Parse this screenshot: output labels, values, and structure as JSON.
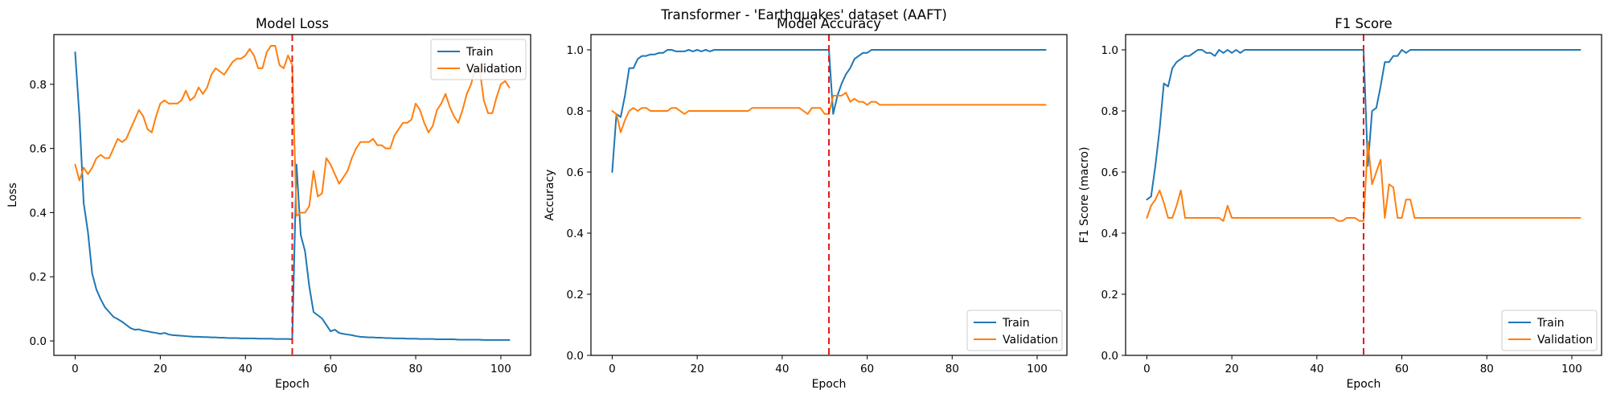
{
  "suptitle": "Transformer - 'Earthquakes' dataset (AAFT)",
  "colors": {
    "train": "#1f77b4",
    "validation": "#ff7f0e",
    "marker": "#e41a1c"
  },
  "chart_data": [
    {
      "type": "line",
      "title": "Model Loss",
      "xlabel": "Epoch",
      "ylabel": "Loss",
      "xlim": [
        -5,
        107
      ],
      "ylim": [
        -0.045,
        0.955
      ],
      "xticks": [
        0,
        20,
        40,
        60,
        80,
        100
      ],
      "yticks": [
        0.0,
        0.2,
        0.4,
        0.6,
        0.8
      ],
      "ytick_labels": [
        "0.0",
        "0.2",
        "0.4",
        "0.6",
        "0.8"
      ],
      "vline": 51,
      "legend": "top-right",
      "series": [
        {
          "name": "Train",
          "values": [
            0.9,
            0.7,
            0.43,
            0.34,
            0.21,
            0.16,
            0.13,
            0.105,
            0.09,
            0.075,
            0.068,
            0.06,
            0.05,
            0.04,
            0.035,
            0.036,
            0.032,
            0.03,
            0.027,
            0.025,
            0.022,
            0.025,
            0.02,
            0.018,
            0.017,
            0.016,
            0.015,
            0.014,
            0.013,
            0.013,
            0.012,
            0.012,
            0.011,
            0.011,
            0.01,
            0.01,
            0.009,
            0.009,
            0.009,
            0.008,
            0.008,
            0.008,
            0.008,
            0.007,
            0.007,
            0.007,
            0.007,
            0.006,
            0.006,
            0.006,
            0.006,
            0.005,
            0.55,
            0.33,
            0.28,
            0.17,
            0.09,
            0.08,
            0.07,
            0.05,
            0.03,
            0.035,
            0.025,
            0.022,
            0.02,
            0.018,
            0.015,
            0.013,
            0.012,
            0.011,
            0.011,
            0.01,
            0.01,
            0.009,
            0.009,
            0.008,
            0.008,
            0.008,
            0.007,
            0.007,
            0.007,
            0.006,
            0.006,
            0.006,
            0.006,
            0.005,
            0.005,
            0.005,
            0.005,
            0.005,
            0.004,
            0.004,
            0.004,
            0.004,
            0.004,
            0.004,
            0.003,
            0.003,
            0.003,
            0.003,
            0.003,
            0.003,
            0.003
          ]
        },
        {
          "name": "Validation",
          "values": [
            0.55,
            0.5,
            0.54,
            0.52,
            0.54,
            0.57,
            0.58,
            0.57,
            0.57,
            0.6,
            0.63,
            0.62,
            0.63,
            0.66,
            0.69,
            0.72,
            0.7,
            0.66,
            0.65,
            0.7,
            0.74,
            0.75,
            0.74,
            0.74,
            0.74,
            0.75,
            0.78,
            0.75,
            0.76,
            0.79,
            0.77,
            0.79,
            0.83,
            0.85,
            0.84,
            0.83,
            0.85,
            0.87,
            0.88,
            0.88,
            0.89,
            0.91,
            0.89,
            0.85,
            0.85,
            0.9,
            0.92,
            0.92,
            0.86,
            0.85,
            0.89,
            0.86,
            0.39,
            0.4,
            0.4,
            0.42,
            0.53,
            0.45,
            0.46,
            0.57,
            0.55,
            0.52,
            0.49,
            0.51,
            0.53,
            0.57,
            0.6,
            0.62,
            0.62,
            0.62,
            0.63,
            0.61,
            0.61,
            0.6,
            0.6,
            0.64,
            0.66,
            0.68,
            0.68,
            0.69,
            0.74,
            0.72,
            0.68,
            0.65,
            0.67,
            0.72,
            0.74,
            0.77,
            0.73,
            0.7,
            0.68,
            0.72,
            0.77,
            0.8,
            0.85,
            0.85,
            0.75,
            0.71,
            0.71,
            0.76,
            0.8,
            0.81,
            0.79
          ]
        }
      ]
    },
    {
      "type": "line",
      "title": "Model Accuracy",
      "xlabel": "Epoch",
      "ylabel": "Accuracy",
      "xlim": [
        -5,
        107
      ],
      "ylim": [
        0.0,
        1.05
      ],
      "xticks": [
        0,
        20,
        40,
        60,
        80,
        100
      ],
      "yticks": [
        0.0,
        0.2,
        0.4,
        0.6,
        0.8,
        1.0
      ],
      "ytick_labels": [
        "0.0",
        "0.2",
        "0.4",
        "0.6",
        "0.8",
        "1.0"
      ],
      "vline": 51,
      "legend": "bottom-right",
      "series": [
        {
          "name": "Train",
          "values": [
            0.6,
            0.79,
            0.78,
            0.85,
            0.94,
            0.94,
            0.97,
            0.98,
            0.98,
            0.985,
            0.985,
            0.99,
            0.99,
            1.0,
            1.0,
            0.995,
            0.995,
            0.995,
            1.0,
            0.995,
            1.0,
            0.995,
            1.0,
            0.995,
            1.0,
            1.0,
            1.0,
            1.0,
            1.0,
            1.0,
            1.0,
            1.0,
            1.0,
            1.0,
            1.0,
            1.0,
            1.0,
            1.0,
            1.0,
            1.0,
            1.0,
            1.0,
            1.0,
            1.0,
            1.0,
            1.0,
            1.0,
            1.0,
            1.0,
            1.0,
            1.0,
            1.0,
            0.79,
            0.85,
            0.89,
            0.92,
            0.94,
            0.97,
            0.98,
            0.99,
            0.99,
            1.0,
            1.0,
            1.0,
            1.0,
            1.0,
            1.0,
            1.0,
            1.0,
            1.0,
            1.0,
            1.0,
            1.0,
            1.0,
            1.0,
            1.0,
            1.0,
            1.0,
            1.0,
            1.0,
            1.0,
            1.0,
            1.0,
            1.0,
            1.0,
            1.0,
            1.0,
            1.0,
            1.0,
            1.0,
            1.0,
            1.0,
            1.0,
            1.0,
            1.0,
            1.0,
            1.0,
            1.0,
            1.0,
            1.0,
            1.0,
            1.0,
            1.0
          ]
        },
        {
          "name": "Validation",
          "values": [
            0.8,
            0.79,
            0.73,
            0.77,
            0.8,
            0.81,
            0.8,
            0.81,
            0.81,
            0.8,
            0.8,
            0.8,
            0.8,
            0.8,
            0.81,
            0.81,
            0.8,
            0.79,
            0.8,
            0.8,
            0.8,
            0.8,
            0.8,
            0.8,
            0.8,
            0.8,
            0.8,
            0.8,
            0.8,
            0.8,
            0.8,
            0.8,
            0.8,
            0.81,
            0.81,
            0.81,
            0.81,
            0.81,
            0.81,
            0.81,
            0.81,
            0.81,
            0.81,
            0.81,
            0.81,
            0.8,
            0.79,
            0.81,
            0.81,
            0.81,
            0.79,
            0.79,
            0.85,
            0.85,
            0.85,
            0.86,
            0.83,
            0.84,
            0.83,
            0.83,
            0.82,
            0.83,
            0.83,
            0.82,
            0.82,
            0.82,
            0.82,
            0.82,
            0.82,
            0.82,
            0.82,
            0.82,
            0.82,
            0.82,
            0.82,
            0.82,
            0.82,
            0.82,
            0.82,
            0.82,
            0.82,
            0.82,
            0.82,
            0.82,
            0.82,
            0.82,
            0.82,
            0.82,
            0.82,
            0.82,
            0.82,
            0.82,
            0.82,
            0.82,
            0.82,
            0.82,
            0.82,
            0.82,
            0.82,
            0.82,
            0.82,
            0.82,
            0.82
          ]
        }
      ]
    },
    {
      "type": "line",
      "title": "F1 Score",
      "xlabel": "Epoch",
      "ylabel": "F1 Score (macro)",
      "xlim": [
        -5,
        107
      ],
      "ylim": [
        0.0,
        1.05
      ],
      "xticks": [
        0,
        20,
        40,
        60,
        80,
        100
      ],
      "yticks": [
        0.0,
        0.2,
        0.4,
        0.6,
        0.8,
        1.0
      ],
      "ytick_labels": [
        "0.0",
        "0.2",
        "0.4",
        "0.6",
        "0.8",
        "1.0"
      ],
      "vline": 51,
      "legend": "bottom-right",
      "series": [
        {
          "name": "Train",
          "values": [
            0.51,
            0.52,
            0.62,
            0.74,
            0.89,
            0.88,
            0.94,
            0.96,
            0.97,
            0.98,
            0.98,
            0.99,
            1.0,
            1.0,
            0.99,
            0.99,
            0.98,
            1.0,
            0.99,
            1.0,
            0.99,
            1.0,
            0.99,
            1.0,
            1.0,
            1.0,
            1.0,
            1.0,
            1.0,
            1.0,
            1.0,
            1.0,
            1.0,
            1.0,
            1.0,
            1.0,
            1.0,
            1.0,
            1.0,
            1.0,
            1.0,
            1.0,
            1.0,
            1.0,
            1.0,
            1.0,
            1.0,
            1.0,
            1.0,
            1.0,
            1.0,
            1.0,
            0.62,
            0.8,
            0.81,
            0.88,
            0.96,
            0.96,
            0.98,
            0.98,
            1.0,
            0.99,
            1.0,
            1.0,
            1.0,
            1.0,
            1.0,
            1.0,
            1.0,
            1.0,
            1.0,
            1.0,
            1.0,
            1.0,
            1.0,
            1.0,
            1.0,
            1.0,
            1.0,
            1.0,
            1.0,
            1.0,
            1.0,
            1.0,
            1.0,
            1.0,
            1.0,
            1.0,
            1.0,
            1.0,
            1.0,
            1.0,
            1.0,
            1.0,
            1.0,
            1.0,
            1.0,
            1.0,
            1.0,
            1.0,
            1.0,
            1.0,
            1.0
          ]
        },
        {
          "name": "Validation",
          "values": [
            0.45,
            0.49,
            0.51,
            0.54,
            0.5,
            0.45,
            0.45,
            0.49,
            0.54,
            0.45,
            0.45,
            0.45,
            0.45,
            0.45,
            0.45,
            0.45,
            0.45,
            0.45,
            0.44,
            0.49,
            0.45,
            0.45,
            0.45,
            0.45,
            0.45,
            0.45,
            0.45,
            0.45,
            0.45,
            0.45,
            0.45,
            0.45,
            0.45,
            0.45,
            0.45,
            0.45,
            0.45,
            0.45,
            0.45,
            0.45,
            0.45,
            0.45,
            0.45,
            0.45,
            0.45,
            0.44,
            0.44,
            0.45,
            0.45,
            0.45,
            0.44,
            0.44,
            0.7,
            0.56,
            0.6,
            0.64,
            0.45,
            0.56,
            0.55,
            0.45,
            0.45,
            0.51,
            0.51,
            0.45,
            0.45,
            0.45,
            0.45,
            0.45,
            0.45,
            0.45,
            0.45,
            0.45,
            0.45,
            0.45,
            0.45,
            0.45,
            0.45,
            0.45,
            0.45,
            0.45,
            0.45,
            0.45,
            0.45,
            0.45,
            0.45,
            0.45,
            0.45,
            0.45,
            0.45,
            0.45,
            0.45,
            0.45,
            0.45,
            0.45,
            0.45,
            0.45,
            0.45,
            0.45,
            0.45,
            0.45,
            0.45,
            0.45,
            0.45
          ]
        }
      ]
    }
  ]
}
